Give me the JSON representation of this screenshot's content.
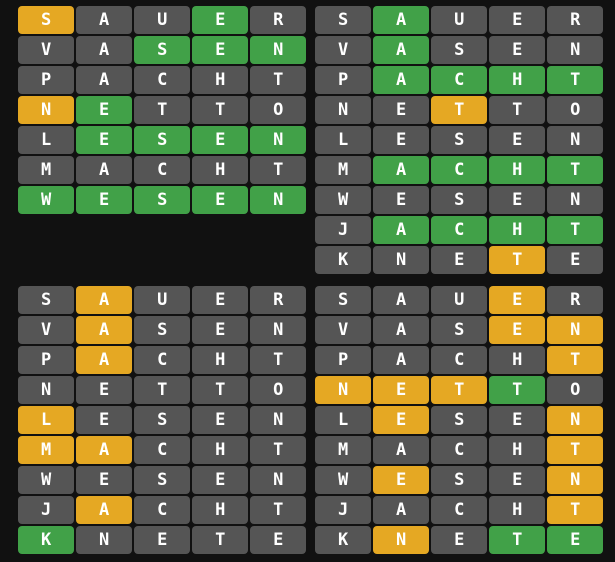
{
  "colors": {
    "background": "#111111",
    "absent": "#555555",
    "present": "#e5a823",
    "correct": "#41a148"
  },
  "state_legend": {
    "g": "correct",
    "y": "present",
    ".": "absent"
  },
  "boards": [
    {
      "name": "board-top-left",
      "rows": [
        {
          "word": "SAUER",
          "states": "y..g."
        },
        {
          "word": "VASEN",
          "states": "..ggg"
        },
        {
          "word": "PACHT",
          "states": "....."
        },
        {
          "word": "NETTO",
          "states": "yg..."
        },
        {
          "word": "LESEN",
          "states": ".gggg"
        },
        {
          "word": "MACHT",
          "states": "....."
        },
        {
          "word": "WESEN",
          "states": "ggggg"
        }
      ]
    },
    {
      "name": "board-top-right",
      "rows": [
        {
          "word": "SAUER",
          "states": ".g..."
        },
        {
          "word": "VASEN",
          "states": ".g..."
        },
        {
          "word": "PACHT",
          "states": ".gggg"
        },
        {
          "word": "NETTO",
          "states": "..y.."
        },
        {
          "word": "LESEN",
          "states": "....."
        },
        {
          "word": "MACHT",
          "states": ".gggg"
        },
        {
          "word": "WESEN",
          "states": "....."
        },
        {
          "word": "JACHT",
          "states": ".gggg"
        },
        {
          "word": "KNETE",
          "states": "...y."
        }
      ]
    },
    {
      "name": "board-bottom-left",
      "rows": [
        {
          "word": "SAUER",
          "states": ".y..."
        },
        {
          "word": "VASEN",
          "states": ".y..."
        },
        {
          "word": "PACHT",
          "states": ".y..."
        },
        {
          "word": "NETTO",
          "states": "....."
        },
        {
          "word": "LESEN",
          "states": "y...."
        },
        {
          "word": "MACHT",
          "states": "yy..."
        },
        {
          "word": "WESEN",
          "states": "....."
        },
        {
          "word": "JACHT",
          "states": ".y..."
        },
        {
          "word": "KNETE",
          "states": "g...."
        }
      ]
    },
    {
      "name": "board-bottom-right",
      "rows": [
        {
          "word": "SAUER",
          "states": "...y."
        },
        {
          "word": "VASEN",
          "states": "...yy"
        },
        {
          "word": "PACHT",
          "states": "....y"
        },
        {
          "word": "NETTO",
          "states": "yyyg."
        },
        {
          "word": "LESEN",
          "states": ".y..y"
        },
        {
          "word": "MACHT",
          "states": "....y"
        },
        {
          "word": "WESEN",
          "states": ".y..y"
        },
        {
          "word": "JACHT",
          "states": "....y"
        },
        {
          "word": "KNETE",
          "states": ".y.gg"
        }
      ]
    }
  ]
}
